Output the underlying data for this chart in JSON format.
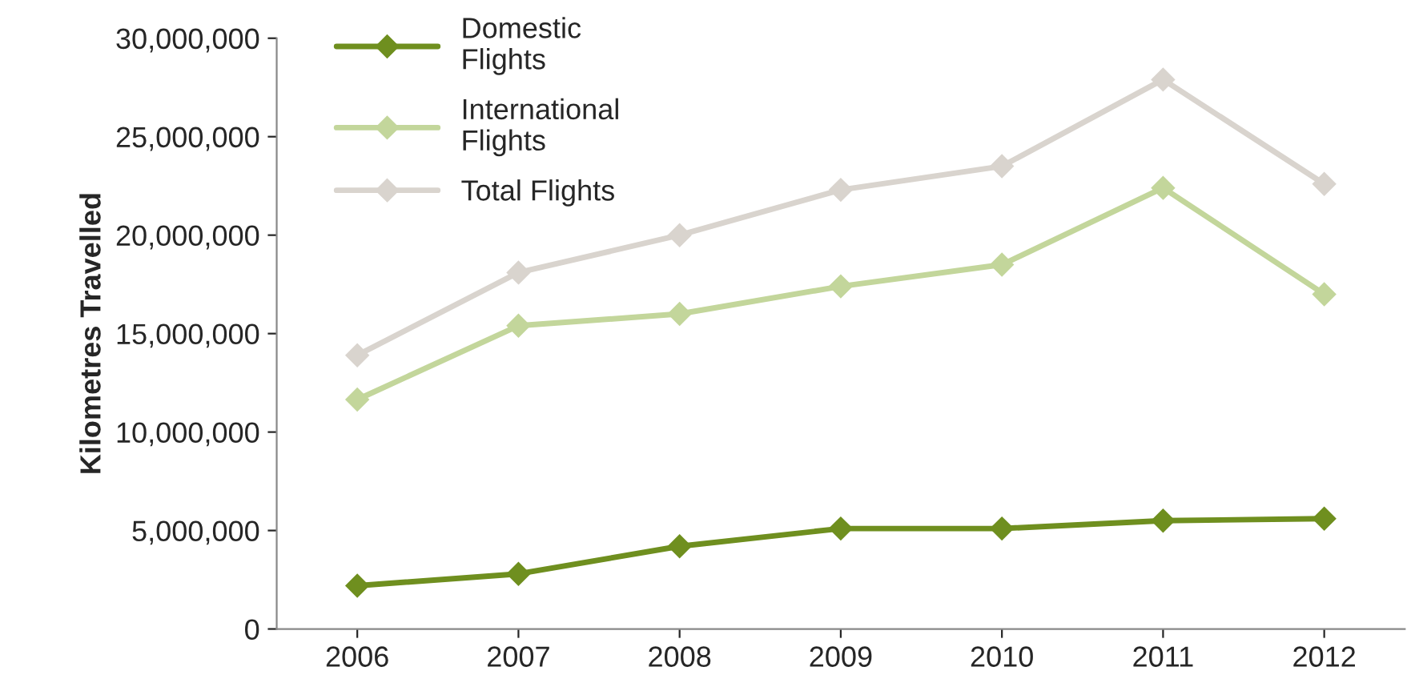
{
  "chart_data": {
    "type": "line",
    "ylabel": "Kilometres Travelled",
    "categories": [
      "2006",
      "2007",
      "2008",
      "2009",
      "2010",
      "2011",
      "2012"
    ],
    "series": [
      {
        "name": "Domestic\nFlights",
        "color": "#6f8f1f",
        "values": [
          2200000,
          2800000,
          4200000,
          5100000,
          5100000,
          5500000,
          5600000
        ]
      },
      {
        "name": "International\nFlights",
        "color": "#c3d69b",
        "values": [
          11650000,
          15400000,
          16000000,
          17400000,
          18500000,
          22400000,
          17000000
        ]
      },
      {
        "name": "Total Flights",
        "color": "#d9d4ce",
        "values": [
          13900000,
          18100000,
          20000000,
          22300000,
          23500000,
          27900000,
          22600000
        ]
      }
    ],
    "ylim": [
      0,
      30000000
    ],
    "yticks": [
      {
        "value": 0,
        "label": "0"
      },
      {
        "value": 5000000,
        "label": "5,000,000"
      },
      {
        "value": 10000000,
        "label": "10,000,000"
      },
      {
        "value": 15000000,
        "label": "15,000,000"
      },
      {
        "value": 20000000,
        "label": "20,000,000"
      },
      {
        "value": 25000000,
        "label": "25,000,000"
      },
      {
        "value": 30000000,
        "label": "30,000,000"
      }
    ],
    "grid": false,
    "legend": "top left",
    "marker": "diamond",
    "line_style": "solid"
  }
}
